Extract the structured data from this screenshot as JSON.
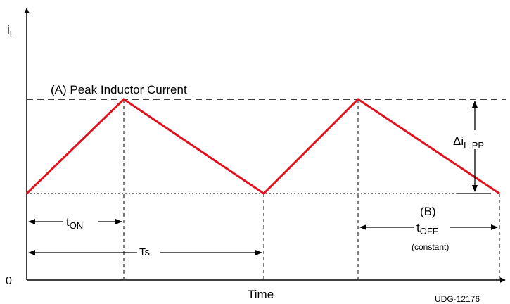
{
  "labels": {
    "y_axis": "i",
    "y_axis_sub": "L",
    "origin": "0",
    "x_axis": "Time",
    "peak_label": "(A) Peak Inductor Current",
    "t_on": "t",
    "t_on_sub": "ON",
    "t_s": "Ts",
    "delta": "Δi",
    "delta_sub": "L-PP",
    "b_label": "(B)",
    "t_off": "t",
    "t_off_sub": "OFF",
    "constant": "(constant)",
    "figure_id": "UDG-12176"
  },
  "colors": {
    "waveform": "#e0101c",
    "lines": "#000000"
  }
}
